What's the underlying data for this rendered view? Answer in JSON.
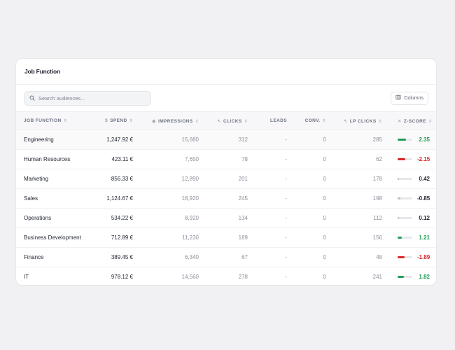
{
  "card": {
    "title": "Job Function"
  },
  "search": {
    "placeholder": "Search audiences..."
  },
  "toolbar": {
    "columns_label": "Columns"
  },
  "table": {
    "headers": {
      "job_function": "JOB FUNCTION",
      "spend": "SPEND",
      "impressions": "IMPRESSIONS",
      "clicks": "CLICKS",
      "leads": "LEADS",
      "conv": "CONV.",
      "lp_clicks": "LP CLICKS",
      "z_score": "Z-SCORE"
    },
    "header_icons": {
      "spend": "dollar-icon",
      "impressions": "eye-icon",
      "clicks": "cursor-icon",
      "lp_clicks": "cursor-icon",
      "z_score": "sigma-icon",
      "sort": "sort-icon"
    },
    "rows": [
      {
        "name": "Engineering",
        "spend": "1,247.92 €",
        "impressions": "15,680",
        "clicks": "312",
        "leads": "-",
        "conv": "0",
        "lp_clicks": "285",
        "z": "2.35"
      },
      {
        "name": "Human Resources",
        "spend": "423.11 €",
        "impressions": "7,650",
        "clicks": "78",
        "leads": "-",
        "conv": "0",
        "lp_clicks": "62",
        "z": "-2.15"
      },
      {
        "name": "Marketing",
        "spend": "856.33 €",
        "impressions": "12,890",
        "clicks": "201",
        "leads": "-",
        "conv": "0",
        "lp_clicks": "178",
        "z": "0.42"
      },
      {
        "name": "Sales",
        "spend": "1,124.67 €",
        "impressions": "18,920",
        "clicks": "245",
        "leads": "-",
        "conv": "0",
        "lp_clicks": "198",
        "z": "-0.85"
      },
      {
        "name": "Operations",
        "spend": "534.22 €",
        "impressions": "8,920",
        "clicks": "134",
        "leads": "-",
        "conv": "0",
        "lp_clicks": "112",
        "z": "0.12"
      },
      {
        "name": "Business Development",
        "spend": "712.89 €",
        "impressions": "11,230",
        "clicks": "189",
        "leads": "-",
        "conv": "0",
        "lp_clicks": "156",
        "z": "1.21"
      },
      {
        "name": "Finance",
        "spend": "389.45 €",
        "impressions": "6,340",
        "clicks": "67",
        "leads": "-",
        "conv": "0",
        "lp_clicks": "48",
        "z": "-1.89"
      },
      {
        "name": "IT",
        "spend": "978.12 €",
        "impressions": "14,560",
        "clicks": "278",
        "leads": "-",
        "conv": "0",
        "lp_clicks": "241",
        "z": "1.82"
      }
    ]
  },
  "colors": {
    "positive": "#1f9d55",
    "negative": "#dc2626",
    "neutral": "#b8bcc4",
    "neutral_text": "#1f2430"
  }
}
